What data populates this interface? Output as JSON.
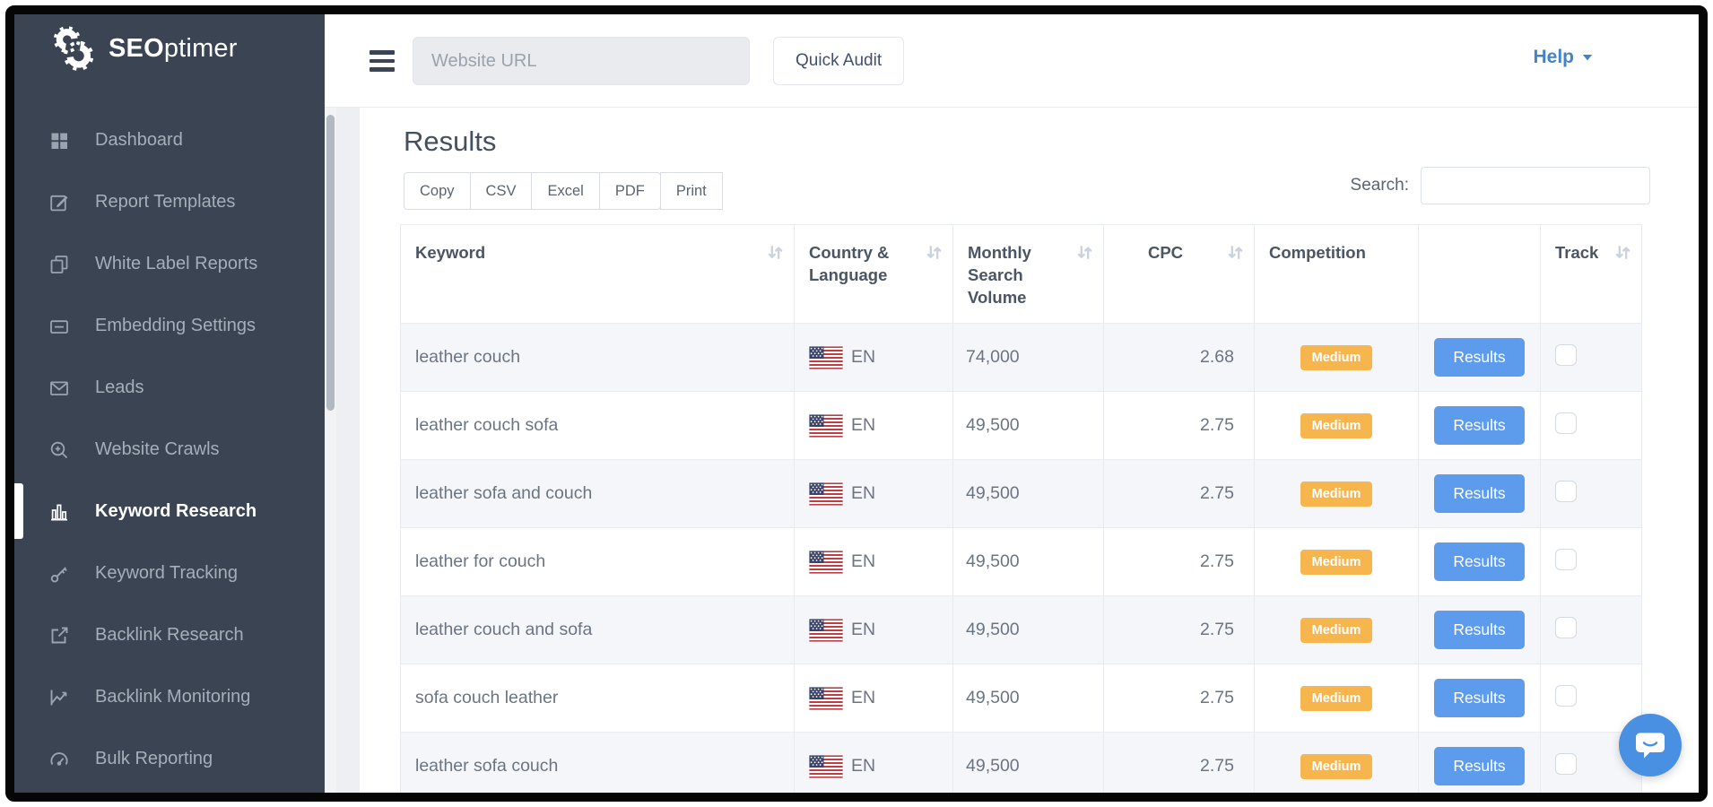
{
  "brand": {
    "name_bold": "SEO",
    "name_rest": "ptimer"
  },
  "sidebar": {
    "items": [
      {
        "label": "Dashboard",
        "icon": "dashboard"
      },
      {
        "label": "Report Templates",
        "icon": "edit"
      },
      {
        "label": "White Label Reports",
        "icon": "copies"
      },
      {
        "label": "Embedding Settings",
        "icon": "embed"
      },
      {
        "label": "Leads",
        "icon": "envelope"
      },
      {
        "label": "Website Crawls",
        "icon": "search-plus"
      },
      {
        "label": "Keyword Research",
        "icon": "bar-chart",
        "active": true
      },
      {
        "label": "Keyword Tracking",
        "icon": "key"
      },
      {
        "label": "Backlink Research",
        "icon": "external-link"
      },
      {
        "label": "Backlink Monitoring",
        "icon": "line-chart"
      },
      {
        "label": "Bulk Reporting",
        "icon": "gauge"
      }
    ]
  },
  "topbar": {
    "url_placeholder": "Website URL",
    "quick_audit_label": "Quick Audit",
    "help_label": "Help"
  },
  "results": {
    "title": "Results",
    "export_buttons": [
      "Copy",
      "CSV",
      "Excel",
      "PDF",
      "Print"
    ],
    "search_label": "Search:",
    "table": {
      "columns": [
        {
          "label": "Keyword",
          "sortable": true
        },
        {
          "label": "Country & Language",
          "sortable": true
        },
        {
          "label": "Monthly Search Volume",
          "sortable": true
        },
        {
          "label": "CPC",
          "sortable": true,
          "align": "center"
        },
        {
          "label": "Competition",
          "sortable": false
        },
        {
          "label": "",
          "sortable": false
        },
        {
          "label": "Track",
          "sortable": true
        }
      ],
      "rows": [
        {
          "keyword": "leather couch",
          "country": "EN",
          "volume": "74,000",
          "cpc": "2.68",
          "competition": "Medium",
          "action": "Results"
        },
        {
          "keyword": "leather couch sofa",
          "country": "EN",
          "volume": "49,500",
          "cpc": "2.75",
          "competition": "Medium",
          "action": "Results"
        },
        {
          "keyword": "leather sofa and couch",
          "country": "EN",
          "volume": "49,500",
          "cpc": "2.75",
          "competition": "Medium",
          "action": "Results"
        },
        {
          "keyword": "leather for couch",
          "country": "EN",
          "volume": "49,500",
          "cpc": "2.75",
          "competition": "Medium",
          "action": "Results"
        },
        {
          "keyword": "leather couch and sofa",
          "country": "EN",
          "volume": "49,500",
          "cpc": "2.75",
          "competition": "Medium",
          "action": "Results"
        },
        {
          "keyword": "sofa couch leather",
          "country": "EN",
          "volume": "49,500",
          "cpc": "2.75",
          "competition": "Medium",
          "action": "Results"
        },
        {
          "keyword": "leather sofa couch",
          "country": "EN",
          "volume": "49,500",
          "cpc": "2.75",
          "competition": "Medium",
          "action": "Results"
        }
      ]
    }
  },
  "colors": {
    "sidebar_bg": "#3b4453",
    "accent_blue": "#5d9cec",
    "badge_orange": "#f7b54e",
    "help_blue": "#4484c4",
    "chat_blue": "#4a90e2",
    "row_stripe": "#f4f6fa"
  }
}
